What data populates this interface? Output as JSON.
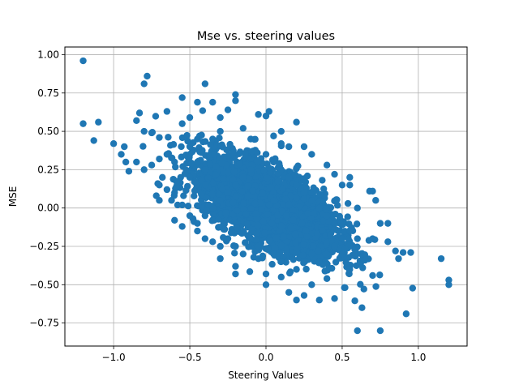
{
  "chart_data": {
    "type": "scatter",
    "title": "Mse vs. steering values",
    "xlabel": "Steering Values",
    "ylabel": "MSE",
    "xlim": [
      -1.32,
      1.32
    ],
    "ylim": [
      -0.9,
      1.05
    ],
    "xticks": [
      -1.0,
      -0.5,
      0.0,
      0.5,
      1.0
    ],
    "xtick_labels": [
      "−1.0",
      "−0.5",
      "0.0",
      "0.5",
      "1.0"
    ],
    "yticks": [
      -0.75,
      -0.5,
      -0.25,
      0.0,
      0.25,
      0.5,
      0.75,
      1.0
    ],
    "ytick_labels": [
      "−0.75",
      "−0.50",
      "−0.25",
      "0.00",
      "0.25",
      "0.50",
      "0.75",
      "1.00"
    ],
    "grid": true,
    "marker_color": "#1f77b4",
    "points": [
      [
        -1.2,
        0.96
      ],
      [
        -1.2,
        0.55
      ],
      [
        -1.1,
        0.56
      ],
      [
        -1.13,
        0.44
      ],
      [
        -1.0,
        0.42
      ],
      [
        -0.78,
        0.86
      ],
      [
        -0.8,
        0.81
      ],
      [
        -0.83,
        0.62
      ],
      [
        -0.85,
        0.57
      ],
      [
        -0.4,
        0.81
      ],
      [
        -0.55,
        0.72
      ],
      [
        -0.65,
        0.63
      ],
      [
        -0.45,
        0.69
      ],
      [
        -0.35,
        0.69
      ],
      [
        -0.2,
        0.74
      ],
      [
        -0.2,
        0.7
      ],
      [
        -0.25,
        0.64
      ],
      [
        -0.3,
        0.59
      ],
      [
        -0.5,
        0.59
      ],
      [
        -0.05,
        0.61
      ],
      [
        0.02,
        0.63
      ],
      [
        0.0,
        0.6
      ],
      [
        0.2,
        0.56
      ],
      [
        -0.93,
        0.4
      ],
      [
        -0.95,
        0.35
      ],
      [
        -0.92,
        0.3
      ],
      [
        -0.9,
        0.24
      ],
      [
        -0.8,
        0.5
      ],
      [
        -0.75,
        0.49
      ],
      [
        -0.7,
        0.46
      ],
      [
        -0.68,
        0.2
      ],
      [
        -0.62,
        0.05
      ],
      [
        -0.58,
        0.02
      ],
      [
        -0.6,
        -0.08
      ],
      [
        -0.6,
        0.1
      ],
      [
        -0.55,
        -0.12
      ],
      [
        -0.45,
        -0.15
      ],
      [
        -0.3,
        -0.25
      ],
      [
        -0.3,
        -0.33
      ],
      [
        -0.2,
        -0.38
      ],
      [
        -0.2,
        -0.43
      ],
      [
        -0.15,
        -0.3
      ],
      [
        -0.05,
        -0.33
      ],
      [
        0.0,
        -0.5
      ],
      [
        0.0,
        -0.43
      ],
      [
        0.1,
        -0.45
      ],
      [
        0.15,
        -0.55
      ],
      [
        0.2,
        -0.6
      ],
      [
        0.25,
        -0.57
      ],
      [
        0.3,
        -0.5
      ],
      [
        0.35,
        -0.6
      ],
      [
        0.4,
        -0.46
      ],
      [
        0.45,
        -0.59
      ],
      [
        0.5,
        -0.3
      ],
      [
        0.55,
        -0.4
      ],
      [
        0.6,
        -0.8
      ],
      [
        0.63,
        -0.65
      ],
      [
        0.65,
        -0.34
      ],
      [
        0.7,
        -0.44
      ],
      [
        0.75,
        -0.8
      ],
      [
        0.8,
        -0.22
      ],
      [
        0.85,
        -0.28
      ],
      [
        0.87,
        -0.33
      ],
      [
        0.9,
        -0.29
      ],
      [
        0.95,
        -0.29
      ],
      [
        0.92,
        -0.69
      ],
      [
        1.15,
        -0.33
      ],
      [
        1.2,
        -0.47
      ],
      [
        1.2,
        -0.5
      ],
      [
        0.7,
        -0.2
      ],
      [
        0.6,
        -0.2
      ],
      [
        0.68,
        0.11
      ],
      [
        0.7,
        0.11
      ],
      [
        0.72,
        0.05
      ],
      [
        0.75,
        -0.1
      ],
      [
        0.8,
        -0.1
      ],
      [
        0.6,
        0.0
      ],
      [
        0.55,
        0.15
      ],
      [
        0.55,
        0.2
      ],
      [
        0.5,
        0.15
      ],
      [
        0.45,
        0.22
      ],
      [
        0.4,
        0.28
      ],
      [
        0.3,
        0.35
      ],
      [
        0.25,
        0.4
      ],
      [
        0.15,
        0.4
      ],
      [
        0.1,
        0.42
      ],
      [
        0.05,
        0.47
      ],
      [
        0.1,
        0.5
      ],
      [
        -0.1,
        0.45
      ],
      [
        -0.15,
        0.52
      ],
      [
        -0.3,
        0.5
      ],
      [
        -0.35,
        0.45
      ],
      [
        -0.45,
        0.45
      ],
      [
        -0.55,
        0.55
      ],
      [
        -0.5,
        0.4
      ],
      [
        -0.5,
        0.35
      ],
      [
        -0.45,
        0.3
      ],
      [
        -0.4,
        0.25
      ],
      [
        -0.5,
        0.2
      ],
      [
        -0.6,
        0.3
      ],
      [
        -0.65,
        0.35
      ],
      [
        -0.7,
        0.32
      ],
      [
        -0.75,
        0.28
      ],
      [
        -0.8,
        0.25
      ],
      [
        -0.85,
        0.3
      ],
      [
        -0.7,
        0.15
      ],
      [
        -0.65,
        0.12
      ],
      [
        -0.7,
        0.05
      ],
      [
        -0.72,
        0.08
      ],
      [
        -0.55,
        0.02
      ],
      [
        -0.5,
        -0.05
      ],
      [
        -0.45,
        -0.1
      ],
      [
        -0.4,
        -0.2
      ],
      [
        -0.35,
        -0.22
      ],
      [
        -0.25,
        -0.2
      ],
      [
        -0.2,
        -0.25
      ],
      [
        -0.1,
        -0.2
      ],
      [
        -0.05,
        -0.25
      ],
      [
        0.05,
        -0.3
      ],
      [
        0.1,
        -0.35
      ],
      [
        0.2,
        -0.4
      ],
      [
        0.3,
        -0.3
      ],
      [
        0.35,
        -0.35
      ],
      [
        0.4,
        -0.3
      ],
      [
        0.45,
        -0.25
      ],
      [
        0.5,
        -0.2
      ],
      [
        0.55,
        -0.15
      ],
      [
        0.45,
        -0.1
      ],
      [
        0.4,
        -0.05
      ],
      [
        0.35,
        0.0
      ],
      [
        0.3,
        0.05
      ],
      [
        0.25,
        0.1
      ],
      [
        0.2,
        0.15
      ],
      [
        0.15,
        0.2
      ],
      [
        0.1,
        0.25
      ],
      [
        0.05,
        0.3
      ],
      [
        0.0,
        0.35
      ],
      [
        -0.05,
        0.3
      ],
      [
        -0.1,
        0.25
      ],
      [
        -0.15,
        0.2
      ],
      [
        -0.2,
        0.15
      ],
      [
        -0.25,
        0.1
      ],
      [
        -0.3,
        0.05
      ],
      [
        -0.35,
        0.0
      ],
      [
        -0.4,
        -0.05
      ]
    ]
  }
}
